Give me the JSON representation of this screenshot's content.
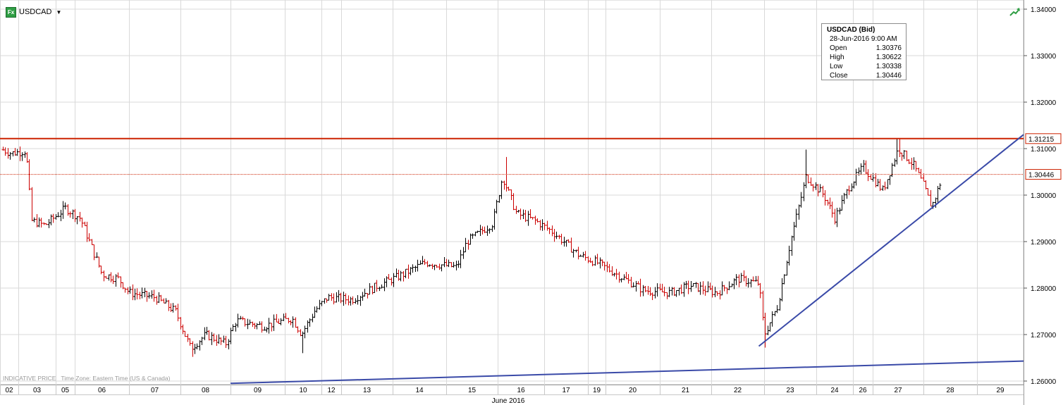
{
  "header": {
    "symbol": "USDCAD",
    "icon_label": "Fx"
  },
  "infobox": {
    "title": "USDCAD (Bid)",
    "datetime": "28-Jun-2016 9:00 AM",
    "rows": [
      {
        "label": "Open",
        "value": "1.30376"
      },
      {
        "label": "High",
        "value": "1.30622"
      },
      {
        "label": "Low",
        "value": "1.30338"
      },
      {
        "label": "Close",
        "value": "1.30446"
      }
    ]
  },
  "footnote": {
    "prefix": "INDICATIVE PRICE",
    "timezone": "Time Zone: Eastern Time (US & Canada)"
  },
  "colors": {
    "up": "#000000",
    "down": "#cc0000",
    "resistance": "#cc2200",
    "trendline": "#3a4aa8",
    "grid": "#d9d9d9"
  },
  "chart_data": {
    "type": "ohlc",
    "symbol": "USDCAD",
    "xlabel": "June 2016",
    "ylim": [
      1.26,
      1.34
    ],
    "y_ticks": [
      1.26,
      1.27,
      1.28,
      1.29,
      1.3,
      1.31,
      1.32,
      1.33,
      1.34
    ],
    "y_tick_labels": [
      "1.26000",
      "1.27000",
      "1.28000",
      "1.29000",
      "1.30000",
      "1.31000",
      "1.32000",
      "1.33000",
      "1.34000"
    ],
    "days": [
      "02",
      "03",
      "05",
      "06",
      "07",
      "08",
      "09",
      "10",
      "12",
      "13",
      "14",
      "15",
      "16",
      "17",
      "19",
      "20",
      "21",
      "22",
      "23",
      "24",
      "26",
      "27",
      "28",
      "29"
    ],
    "markers": {
      "resistance_label": "1.31215",
      "last_label": "1.30446"
    },
    "resistance_level": 1.31215,
    "last_price": 1.30446,
    "anchors": [
      {
        "day": "02",
        "frac": 0.0,
        "price": 1.31
      },
      {
        "day": "02",
        "frac": 0.6,
        "price": 1.309
      },
      {
        "day": "03",
        "frac": 0.2,
        "price": 1.3095
      },
      {
        "day": "03",
        "frac": 0.35,
        "price": 1.2945
      },
      {
        "day": "03",
        "frac": 0.7,
        "price": 1.2935
      },
      {
        "day": "05",
        "frac": 0.5,
        "price": 1.2972
      },
      {
        "day": "06",
        "frac": 0.1,
        "price": 1.295
      },
      {
        "day": "06",
        "frac": 0.5,
        "price": 1.283
      },
      {
        "day": "06",
        "frac": 0.8,
        "price": 1.282
      },
      {
        "day": "07",
        "frac": 0.0,
        "price": 1.279
      },
      {
        "day": "07",
        "frac": 0.5,
        "price": 1.278
      },
      {
        "day": "07",
        "frac": 0.9,
        "price": 1.275
      },
      {
        "day": "08",
        "frac": 0.2,
        "price": 1.267
      },
      {
        "day": "08",
        "frac": 0.5,
        "price": 1.27
      },
      {
        "day": "08",
        "frac": 0.9,
        "price": 1.268
      },
      {
        "day": "09",
        "frac": 0.1,
        "price": 1.273
      },
      {
        "day": "09",
        "frac": 0.6,
        "price": 1.2718
      },
      {
        "day": "10",
        "frac": 0.2,
        "price": 1.2735
      },
      {
        "day": "10",
        "frac": 0.45,
        "price": 1.27
      },
      {
        "day": "10",
        "frac": 0.8,
        "price": 1.275
      },
      {
        "day": "12",
        "frac": 0.3,
        "price": 1.278
      },
      {
        "day": "13",
        "frac": 0.2,
        "price": 1.2775
      },
      {
        "day": "13",
        "frac": 0.7,
        "price": 1.2805
      },
      {
        "day": "14",
        "frac": 0.2,
        "price": 1.283
      },
      {
        "day": "14",
        "frac": 0.6,
        "price": 1.2855
      },
      {
        "day": "15",
        "frac": 0.2,
        "price": 1.2845
      },
      {
        "day": "15",
        "frac": 0.4,
        "price": 1.29
      },
      {
        "day": "15",
        "frac": 0.9,
        "price": 1.294
      },
      {
        "day": "16",
        "frac": 0.1,
        "price": 1.304
      },
      {
        "day": "16",
        "frac": 0.4,
        "price": 1.296
      },
      {
        "day": "16",
        "frac": 0.8,
        "price": 1.2945
      },
      {
        "day": "17",
        "frac": 0.2,
        "price": 1.292
      },
      {
        "day": "17",
        "frac": 0.8,
        "price": 1.287
      },
      {
        "day": "19",
        "frac": 0.5,
        "price": 1.2855
      },
      {
        "day": "20",
        "frac": 0.2,
        "price": 1.283
      },
      {
        "day": "20",
        "frac": 0.7,
        "price": 1.2795
      },
      {
        "day": "21",
        "frac": 0.2,
        "price": 1.279
      },
      {
        "day": "21",
        "frac": 0.6,
        "price": 1.2805
      },
      {
        "day": "22",
        "frac": 0.1,
        "price": 1.279
      },
      {
        "day": "22",
        "frac": 0.5,
        "price": 1.282
      },
      {
        "day": "22",
        "frac": 0.9,
        "price": 1.281
      },
      {
        "day": "23",
        "frac": 0.0,
        "price": 1.27
      },
      {
        "day": "23",
        "frac": 0.25,
        "price": 1.276
      },
      {
        "day": "23",
        "frac": 0.5,
        "price": 1.29
      },
      {
        "day": "23",
        "frac": 0.8,
        "price": 1.304
      },
      {
        "day": "24",
        "frac": 0.2,
        "price": 1.3
      },
      {
        "day": "24",
        "frac": 0.5,
        "price": 1.295
      },
      {
        "day": "24",
        "frac": 0.9,
        "price": 1.302
      },
      {
        "day": "26",
        "frac": 0.5,
        "price": 1.306
      },
      {
        "day": "27",
        "frac": 0.2,
        "price": 1.301
      },
      {
        "day": "27",
        "frac": 0.5,
        "price": 1.31
      },
      {
        "day": "27",
        "frac": 0.8,
        "price": 1.3065
      },
      {
        "day": "28",
        "frac": 0.0,
        "price": 1.302
      },
      {
        "day": "28",
        "frac": 0.15,
        "price": 1.2975
      },
      {
        "day": "28",
        "frac": 0.35,
        "price": 1.3038
      }
    ],
    "extremes": [
      {
        "day": "16",
        "frac": 0.2,
        "price": 1.3082
      },
      {
        "day": "10",
        "frac": 0.45,
        "price": 1.266
      },
      {
        "day": "08",
        "frac": 0.25,
        "price": 1.2652
      },
      {
        "day": "23",
        "frac": 0.0,
        "price": 1.2672
      },
      {
        "day": "23",
        "frac": 0.8,
        "price": 1.3098
      },
      {
        "day": "27",
        "frac": 0.5,
        "price": 1.3122
      }
    ],
    "trendlines": [
      {
        "from": {
          "day": "22",
          "frac": 0.9,
          "price": 1.2675
        },
        "to": {
          "day": "29",
          "frac": 1.0,
          "price": 1.313
        }
      },
      {
        "from": {
          "day": "09",
          "frac": 0.0,
          "price": 1.2595
        },
        "to": {
          "day": "29",
          "frac": 1.0,
          "price": 1.2643
        }
      }
    ]
  }
}
